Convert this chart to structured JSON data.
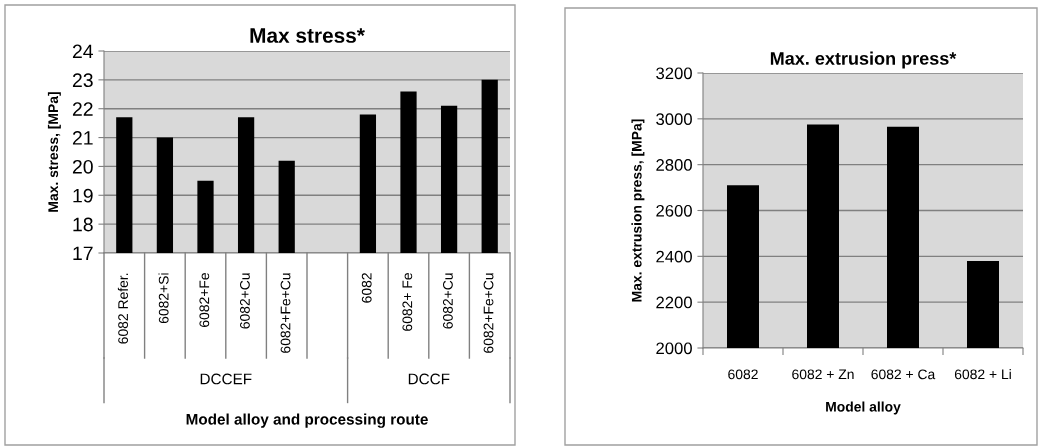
{
  "chart_data": [
    {
      "type": "bar",
      "title": "Max stress*",
      "ylabel": "Max. stress, [MPa]",
      "xlabel": "Model alloy and processing route",
      "categories": [
        "6082 Refer.",
        "6082+Si",
        "6082+Fe",
        "6082+Cu",
        "6082+Fe+Cu",
        null,
        "6082",
        "6082+ Fe",
        "6082+Cu",
        "6082+Fe+Cu"
      ],
      "values": [
        21.7,
        21.0,
        19.5,
        21.7,
        20.2,
        null,
        21.8,
        22.6,
        22.1,
        23.0
      ],
      "color": "#000000",
      "ylim": [
        17,
        24
      ],
      "yticks": [
        17,
        18,
        19,
        20,
        21,
        22,
        23,
        24
      ],
      "grid": "y",
      "annotations": [
        "DCCEF",
        "DCCF"
      ]
    },
    {
      "type": "bar",
      "title": "Max. extrusion press*",
      "ylabel": "Max. extrusion press, [MPa]",
      "xlabel": "Model alloy",
      "categories": [
        "6082",
        "6082 + Zn",
        "6082 + Ca",
        "6082 + Li"
      ],
      "values": [
        2710,
        2975,
        2965,
        2380
      ],
      "color": "#000000",
      "ylim": [
        2000,
        3200
      ],
      "yticks": [
        2000,
        2200,
        2400,
        2600,
        2800,
        3000,
        3200
      ],
      "grid": "y"
    }
  ]
}
